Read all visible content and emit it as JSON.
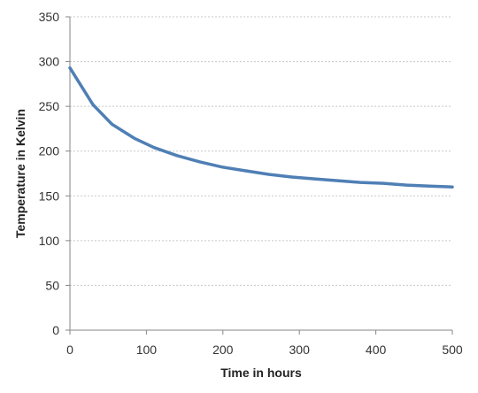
{
  "chart_data": {
    "type": "line",
    "title": "",
    "xlabel": "Time in hours",
    "ylabel": "Temperature in Kelvin",
    "xlim": [
      0,
      500
    ],
    "ylim": [
      0,
      350
    ],
    "x_ticks": [
      0,
      100,
      200,
      300,
      400,
      500
    ],
    "y_ticks": [
      0,
      50,
      100,
      150,
      200,
      250,
      300,
      350
    ],
    "grid": {
      "horizontal": true,
      "vertical": false,
      "style": "dotted"
    },
    "legend": "none",
    "series": [
      {
        "color": "#4f7fb5",
        "x": [
          0,
          30,
          55,
          85,
          110,
          140,
          170,
          200,
          230,
          260,
          290,
          320,
          350,
          380,
          410,
          440,
          470,
          500
        ],
        "y": [
          293,
          252,
          230,
          214,
          204,
          195,
          188,
          182,
          178,
          174,
          171,
          169,
          167,
          165,
          164,
          162,
          161,
          160
        ]
      }
    ]
  }
}
